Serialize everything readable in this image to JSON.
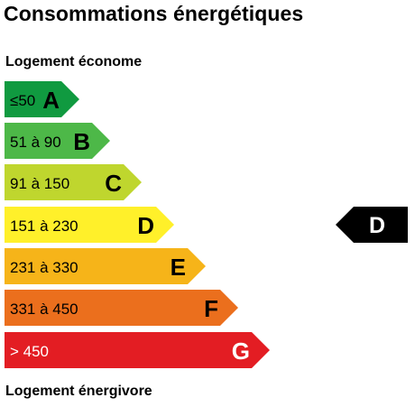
{
  "title": "Consommations énergétiques",
  "top_label": "Logement économe",
  "bottom_label": "Logement énergivore",
  "classes": [
    {
      "range": "≤50",
      "letter": "A",
      "color": "#109a40",
      "text_color": "#000000"
    },
    {
      "range": "51 à 90",
      "letter": "B",
      "color": "#4db848",
      "text_color": "#000000"
    },
    {
      "range": "91 à 150",
      "letter": "C",
      "color": "#bfd62e",
      "text_color": "#000000"
    },
    {
      "range": "151 à 230",
      "letter": "D",
      "color": "#fff02a",
      "text_color": "#000000"
    },
    {
      "range": "231 à 330",
      "letter": "E",
      "color": "#f6b419",
      "text_color": "#000000"
    },
    {
      "range": "331 à 450",
      "letter": "F",
      "color": "#eb6f1d",
      "text_color": "#000000"
    },
    {
      "range": "> 450",
      "letter": "G",
      "color": "#e31d23",
      "text_color": "#ffffff"
    }
  ],
  "current_class": {
    "letter": "D",
    "color": "#000000"
  }
}
